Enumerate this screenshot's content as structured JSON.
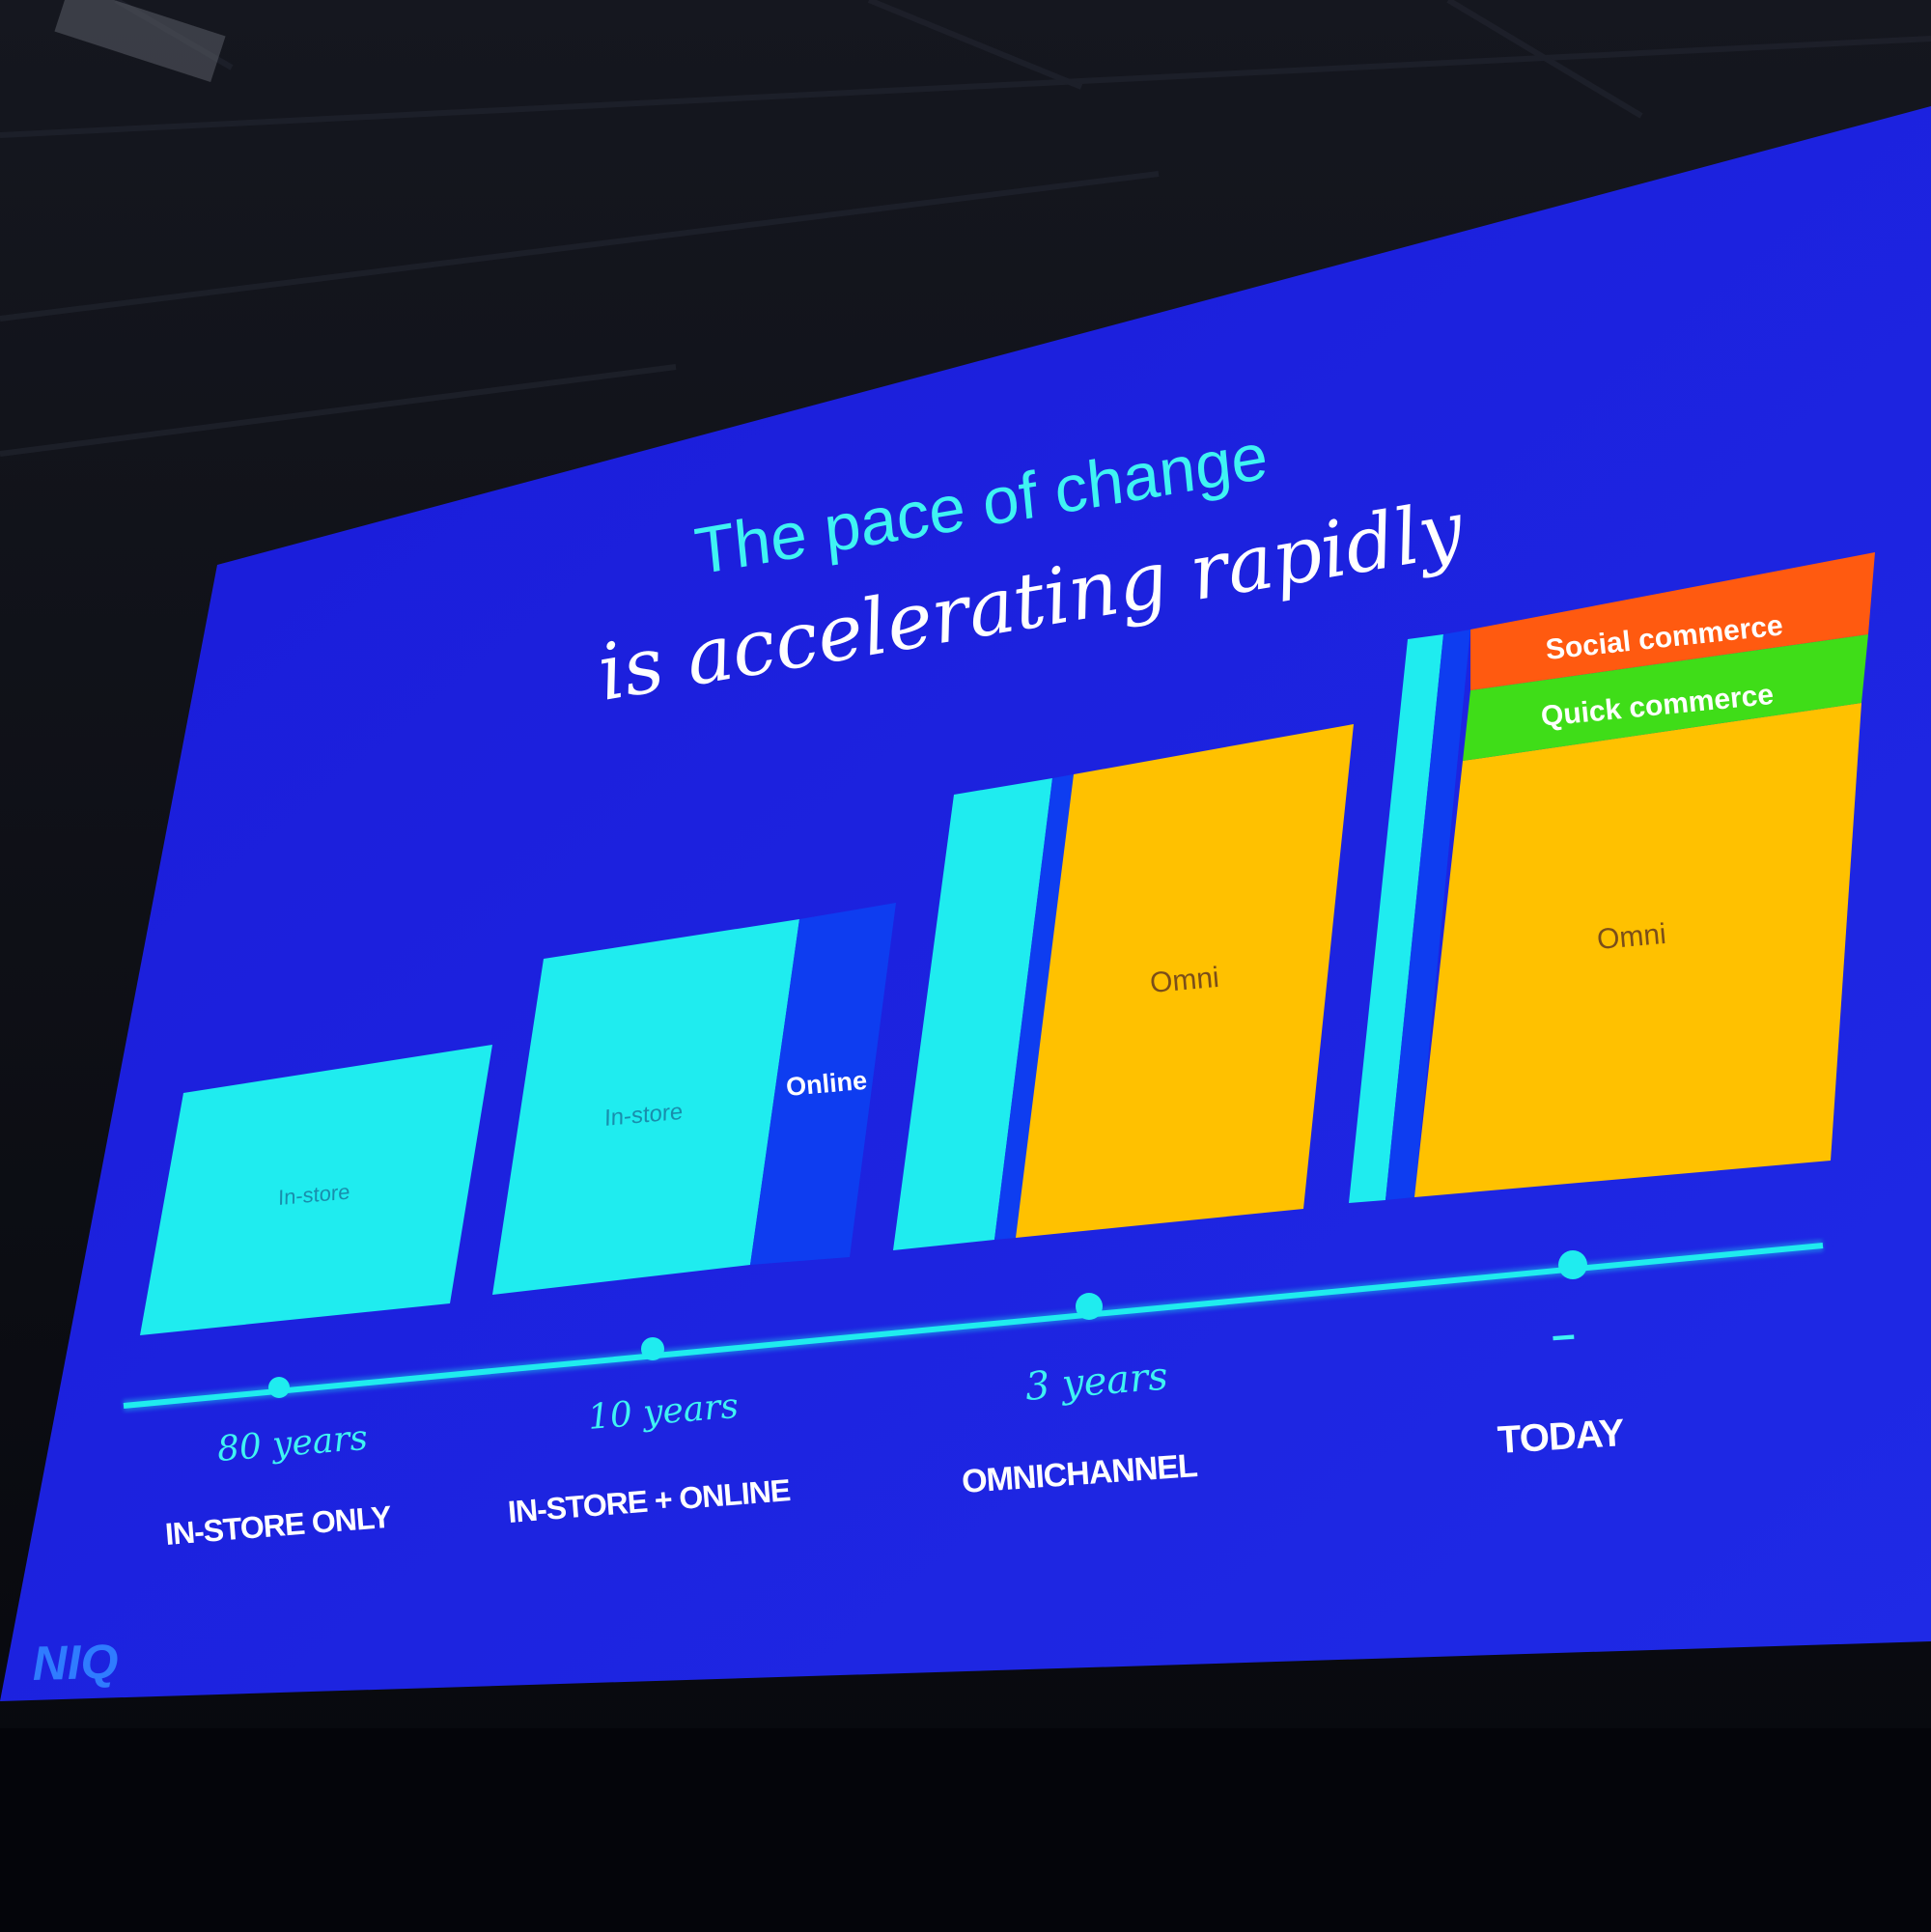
{
  "slide": {
    "title_line1": "The pace of change",
    "title_line2": "is accelerating rapidly",
    "logo_text": "NIQ",
    "colors": {
      "background": "#1515d0",
      "title_line1": "#3ff3f3",
      "title_line2": "#ffffff",
      "in_store": "#1fecef",
      "online": "#0e3df0",
      "omni": "#ffc100",
      "quick_commerce": "#3fdd18",
      "social_commerce": "#ff5a10",
      "timeline": "#1fecef",
      "label_text": "#ffffff"
    }
  },
  "stages": [
    {
      "duration": "80 years",
      "stage_label": "IN-STORE ONLY",
      "segments": [
        {
          "label": "In-store",
          "kind": "in_store"
        }
      ]
    },
    {
      "duration": "10 years",
      "stage_label": "IN-STORE + ONLINE",
      "segments": [
        {
          "label": "In-store",
          "kind": "in_store"
        },
        {
          "label": "Online",
          "kind": "online"
        }
      ]
    },
    {
      "duration": "3 years",
      "stage_label": "OMNICHANNEL",
      "segments": [
        {
          "label": "",
          "kind": "in_store"
        },
        {
          "label": "",
          "kind": "online"
        },
        {
          "label": "Omni",
          "kind": "omni"
        }
      ]
    },
    {
      "duration": "–",
      "stage_label": "TODAY",
      "segments": [
        {
          "label": "",
          "kind": "in_store"
        },
        {
          "label": "",
          "kind": "online"
        },
        {
          "label": "Omni",
          "kind": "omni"
        },
        {
          "label": "Quick commerce",
          "kind": "quick_commerce"
        },
        {
          "label": "Social commerce",
          "kind": "social_commerce"
        }
      ]
    }
  ]
}
